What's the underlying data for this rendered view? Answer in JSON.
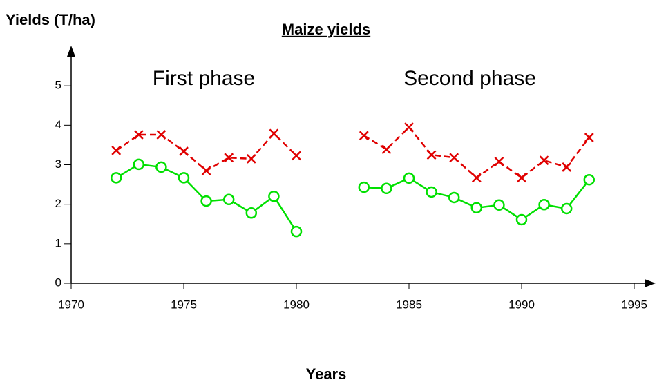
{
  "chart_data": {
    "type": "line",
    "title": "Maize yields",
    "y_label": "Yields (T/ha)",
    "x_label": "Years",
    "annotations": [
      "First phase",
      "Second phase"
    ],
    "x": [
      1972,
      1973,
      1974,
      1975,
      1976,
      1977,
      1978,
      1979,
      1980,
      1981,
      1982,
      1983,
      1984,
      1985,
      1986,
      1987,
      1988,
      1989,
      1990,
      1991,
      1992,
      1993
    ],
    "series": [
      {
        "color": "#e00000",
        "marker": "x",
        "dashed": true,
        "values": [
          3.36,
          3.76,
          3.76,
          3.34,
          2.85,
          3.18,
          3.15,
          3.79,
          3.23,
          null,
          null,
          3.74,
          3.39,
          3.95,
          3.25,
          3.18,
          2.67,
          3.08,
          2.67,
          3.11,
          2.94,
          3.69
        ]
      },
      {
        "color": "#00e000",
        "marker": "o",
        "dashed": false,
        "values": [
          2.67,
          3.01,
          2.94,
          2.67,
          2.08,
          2.12,
          1.78,
          2.2,
          1.31,
          null,
          null,
          2.43,
          2.4,
          2.66,
          2.31,
          2.17,
          1.91,
          1.98,
          1.61,
          1.99,
          1.89,
          2.62
        ]
      }
    ],
    "xlim": [
      1970,
      1995
    ],
    "xticks": [
      1970,
      1975,
      1980,
      1985,
      1990,
      1995
    ],
    "ylim": [
      0,
      6
    ],
    "yticks": [
      0,
      1,
      2,
      3,
      4,
      5
    ]
  }
}
